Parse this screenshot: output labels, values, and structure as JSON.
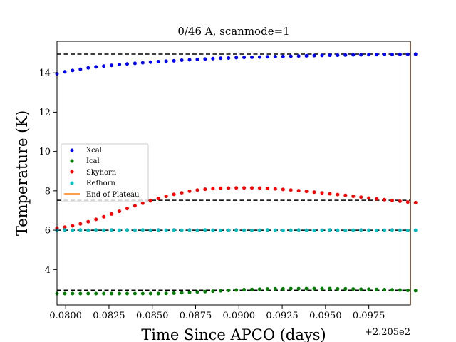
{
  "chart_data": {
    "type": "scatter",
    "title": "0/46 A, scanmode=1",
    "xlabel": "Time Since APCO (days)",
    "ylabel": "Temperature (K)",
    "x_offset_label": "+2.205e2",
    "xlim": [
      0.0795,
      0.0999
    ],
    "ylim": [
      2.2,
      15.6
    ],
    "x_ticks": [
      0.08,
      0.0825,
      0.085,
      0.0875,
      0.09,
      0.0925,
      0.095,
      0.0975
    ],
    "x_tick_labels": [
      "0.0800",
      "0.0825",
      "0.0850",
      "0.0875",
      "0.0900",
      "0.0925",
      "0.0950",
      "0.0975"
    ],
    "y_ticks": [
      4,
      6,
      8,
      10,
      12,
      14
    ],
    "y_tick_labels": [
      "4",
      "6",
      "8",
      "10",
      "12",
      "14"
    ],
    "grid": false,
    "legend_position": "center-left",
    "x_start": 0.0795,
    "x_step": 0.00045,
    "series": [
      {
        "name": "Xcal",
        "color": "#0000ff",
        "values": [
          13.95,
          14.05,
          14.12,
          14.18,
          14.25,
          14.3,
          14.34,
          14.38,
          14.42,
          14.45,
          14.48,
          14.51,
          14.54,
          14.57,
          14.59,
          14.61,
          14.64,
          14.66,
          14.68,
          14.7,
          14.72,
          14.74,
          14.75,
          14.77,
          14.78,
          14.79,
          14.8,
          14.81,
          14.82,
          14.83,
          14.84,
          14.85,
          14.86,
          14.87,
          14.88,
          14.89,
          14.89,
          14.9,
          14.91,
          14.91,
          14.92,
          14.92,
          14.93,
          14.93,
          14.94,
          14.94,
          14.95
        ]
      },
      {
        "name": "Ical",
        "color": "#008000",
        "values": [
          2.78,
          2.78,
          2.78,
          2.78,
          2.78,
          2.78,
          2.78,
          2.78,
          2.78,
          2.78,
          2.78,
          2.78,
          2.78,
          2.78,
          2.79,
          2.8,
          2.82,
          2.84,
          2.86,
          2.88,
          2.9,
          2.92,
          2.94,
          2.96,
          2.98,
          2.99,
          3.0,
          3.01,
          3.02,
          3.02,
          3.03,
          3.03,
          3.03,
          3.03,
          3.03,
          3.03,
          3.02,
          3.02,
          3.01,
          3.0,
          3.0,
          2.99,
          2.98,
          2.97,
          2.96,
          2.94,
          2.93
        ]
      },
      {
        "name": "Skyhorn",
        "color": "#ff0000",
        "values": [
          6.1,
          6.15,
          6.22,
          6.32,
          6.43,
          6.55,
          6.68,
          6.82,
          6.96,
          7.1,
          7.24,
          7.37,
          7.49,
          7.61,
          7.72,
          7.82,
          7.9,
          7.98,
          8.04,
          8.08,
          8.11,
          8.13,
          8.14,
          8.15,
          8.15,
          8.15,
          8.14,
          8.12,
          8.1,
          8.07,
          8.04,
          8.01,
          7.97,
          7.93,
          7.89,
          7.85,
          7.81,
          7.77,
          7.72,
          7.68,
          7.63,
          7.59,
          7.55,
          7.51,
          7.47,
          7.43,
          7.4
        ]
      },
      {
        "name": "Refhorn",
        "color": "#00bfbf",
        "values": [
          6.0,
          6.01,
          6.0,
          6.01,
          6.0,
          6.01,
          6.0,
          6.01,
          6.0,
          6.01,
          6.0,
          6.01,
          6.0,
          6.01,
          6.0,
          6.01,
          6.0,
          6.01,
          6.0,
          6.01,
          6.0,
          5.99,
          6.0,
          6.01,
          6.0,
          5.99,
          6.0,
          6.01,
          6.0,
          5.99,
          6.0,
          6.01,
          6.0,
          5.99,
          6.0,
          6.01,
          6.0,
          5.99,
          6.0,
          6.01,
          6.0,
          5.99,
          6.0,
          6.01,
          6.0,
          5.99,
          6.0
        ]
      }
    ],
    "reference_lines": [
      {
        "y": 14.95,
        "style": "dashed",
        "color": "#000000"
      },
      {
        "y": 7.52,
        "style": "dashed",
        "color": "#000000"
      },
      {
        "y": 6.0,
        "style": "dashed",
        "color": "#000000"
      },
      {
        "y": 2.95,
        "style": "dashed",
        "color": "#000000"
      }
    ],
    "vertical_lines": [
      {
        "name": "End of Plateau",
        "x": 0.0999,
        "color": "#ff7f0e"
      }
    ],
    "legend": [
      {
        "label": "Xcal",
        "kind": "marker",
        "color": "#0000ff"
      },
      {
        "label": "Ical",
        "kind": "marker",
        "color": "#008000"
      },
      {
        "label": "Skyhorn",
        "kind": "marker",
        "color": "#ff0000"
      },
      {
        "label": "Refhorn",
        "kind": "marker",
        "color": "#00bfbf"
      },
      {
        "label": "End of Plateau",
        "kind": "line",
        "color": "#ff7f0e"
      }
    ]
  }
}
